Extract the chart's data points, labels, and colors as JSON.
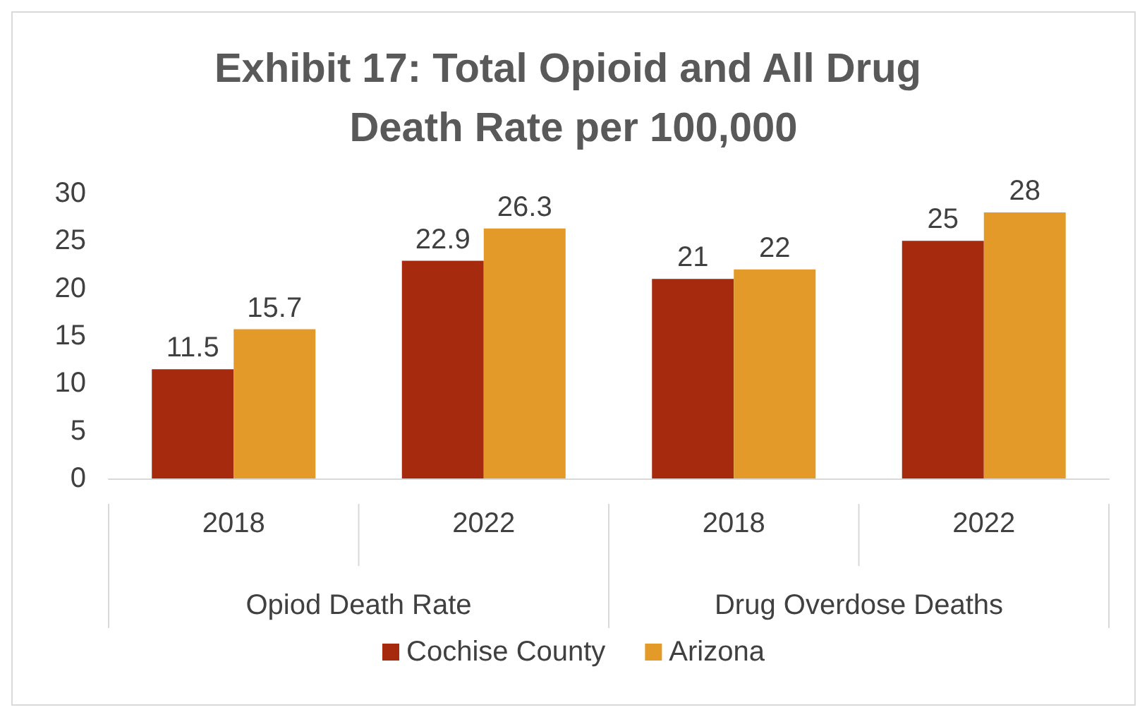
{
  "chart_data": {
    "type": "bar",
    "title": "Exhibit 17: Total Opioid and All Drug Death Rate per 100,000",
    "categories": [
      "2018",
      "2022",
      "2018",
      "2022"
    ],
    "annotations": [
      "Opiod Death Rate",
      "Drug Overdose Deaths"
    ],
    "series": [
      {
        "name": "Cochise County",
        "color": "#a52a0e",
        "values": [
          11.5,
          22.9,
          21,
          25
        ]
      },
      {
        "name": "Arizona",
        "color": "#e39a28",
        "values": [
          15.7,
          26.3,
          22,
          28
        ]
      }
    ],
    "ylim": [
      0,
      30
    ],
    "yticks": [
      0,
      5,
      10,
      15,
      20,
      25,
      30
    ],
    "data_labels": true,
    "grid": false,
    "legend": "bottom"
  }
}
